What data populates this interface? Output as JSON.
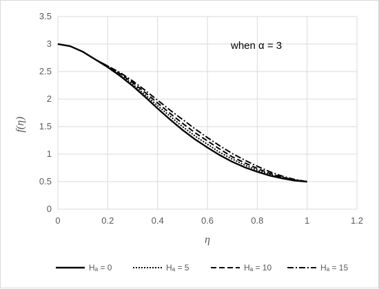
{
  "chart_data": {
    "type": "line",
    "annotation": "when α = 3",
    "xlabel": "η",
    "ylabel": "f(η)",
    "xlim": [
      0,
      1.2
    ],
    "ylim": [
      0,
      3.5
    ],
    "x_ticks": [
      "0",
      "0.2",
      "0.4",
      "0.6",
      "0.8",
      "1",
      "1.2"
    ],
    "y_ticks": [
      "0",
      "0.5",
      "1",
      "1.5",
      "2",
      "2.5",
      "3",
      "3.5"
    ],
    "grid": "vertical and horizontal major gridlines",
    "legend_position": "bottom",
    "series": [
      {
        "name": "Hₐ = 0",
        "style": "solid",
        "color": "#000000",
        "x": [
          0,
          0.05,
          0.1,
          0.15,
          0.2,
          0.25,
          0.3,
          0.35,
          0.4,
          0.45,
          0.5,
          0.55,
          0.6,
          0.65,
          0.7,
          0.75,
          0.8,
          0.85,
          0.9,
          0.95,
          1.0
        ],
        "y": [
          3.0,
          2.96,
          2.86,
          2.72,
          2.58,
          2.42,
          2.24,
          2.04,
          1.83,
          1.63,
          1.44,
          1.27,
          1.12,
          0.98,
          0.86,
          0.76,
          0.68,
          0.61,
          0.56,
          0.52,
          0.5
        ]
      },
      {
        "name": "Hₐ = 5",
        "style": "dotted",
        "color": "#000000",
        "x": [
          0,
          0.05,
          0.1,
          0.15,
          0.2,
          0.25,
          0.3,
          0.35,
          0.4,
          0.45,
          0.5,
          0.55,
          0.6,
          0.65,
          0.7,
          0.75,
          0.8,
          0.85,
          0.9,
          0.95,
          1.0
        ],
        "y": [
          3.0,
          2.96,
          2.86,
          2.72,
          2.59,
          2.44,
          2.27,
          2.08,
          1.88,
          1.69,
          1.5,
          1.33,
          1.18,
          1.03,
          0.91,
          0.8,
          0.71,
          0.63,
          0.57,
          0.53,
          0.5
        ]
      },
      {
        "name": "Hₐ = 10",
        "style": "dashed",
        "color": "#000000",
        "x": [
          0,
          0.05,
          0.1,
          0.15,
          0.2,
          0.25,
          0.3,
          0.35,
          0.4,
          0.45,
          0.5,
          0.55,
          0.6,
          0.65,
          0.7,
          0.75,
          0.8,
          0.85,
          0.9,
          0.95,
          1.0
        ],
        "y": [
          3.0,
          2.96,
          2.86,
          2.72,
          2.6,
          2.46,
          2.3,
          2.12,
          1.93,
          1.74,
          1.56,
          1.39,
          1.24,
          1.09,
          0.95,
          0.84,
          0.74,
          0.65,
          0.58,
          0.53,
          0.5
        ]
      },
      {
        "name": "Hₐ = 15",
        "style": "dash-dot",
        "color": "#000000",
        "x": [
          0,
          0.05,
          0.1,
          0.15,
          0.2,
          0.25,
          0.3,
          0.35,
          0.4,
          0.45,
          0.5,
          0.55,
          0.6,
          0.65,
          0.7,
          0.75,
          0.8,
          0.85,
          0.9,
          0.95,
          1.0
        ],
        "y": [
          3.0,
          2.96,
          2.86,
          2.72,
          2.6,
          2.48,
          2.33,
          2.16,
          1.98,
          1.8,
          1.63,
          1.46,
          1.3,
          1.15,
          1.01,
          0.89,
          0.78,
          0.68,
          0.6,
          0.54,
          0.5
        ]
      }
    ]
  }
}
